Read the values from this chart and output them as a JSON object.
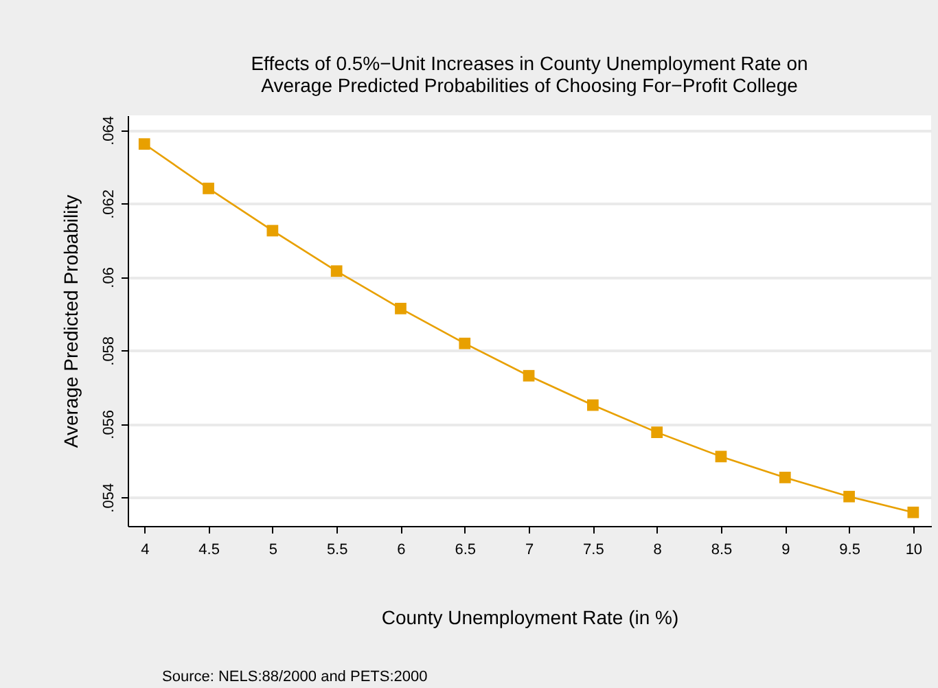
{
  "chart_data": {
    "type": "line",
    "title": [
      "Effects of 0.5%−Unit Increases in County Unemployment Rate on",
      "Average Predicted Probabilities of Choosing For−Profit College"
    ],
    "xlabel": "County Unemployment Rate (in %)",
    "ylabel": "Average Predicted Probability",
    "x": [
      4,
      4.5,
      5,
      5.5,
      6,
      6.5,
      7,
      7.5,
      8,
      8.5,
      9,
      9.5,
      10
    ],
    "series": [
      {
        "color": "#e8a000",
        "values": [
          0.06362,
          0.06241,
          0.06126,
          0.06016,
          0.05914,
          0.05819,
          0.05731,
          0.05651,
          0.05577,
          0.05511,
          0.05454,
          0.05402,
          0.05359
        ]
      }
    ],
    "xlim": [
      3.87,
      10.14
    ],
    "xticks": [
      4,
      4.5,
      5,
      5.5,
      6,
      6.5,
      7,
      7.5,
      8,
      8.5,
      9,
      9.5,
      10
    ],
    "ylim": [
      0.05322,
      0.0644
    ],
    "yticks": [
      {
        "value": 0.054,
        "label": ".054"
      },
      {
        "value": 0.056,
        "label": ".056"
      },
      {
        "value": 0.058,
        "label": ".058"
      },
      {
        "value": 0.06,
        "label": ".06"
      },
      {
        "value": 0.062,
        "label": ".062"
      },
      {
        "value": 0.064,
        "label": ".064"
      }
    ],
    "grid": "y",
    "marker": "square",
    "line_style": "solid",
    "annotations": [
      "Source: NELS:88/2000 and PETS:2000"
    ]
  }
}
